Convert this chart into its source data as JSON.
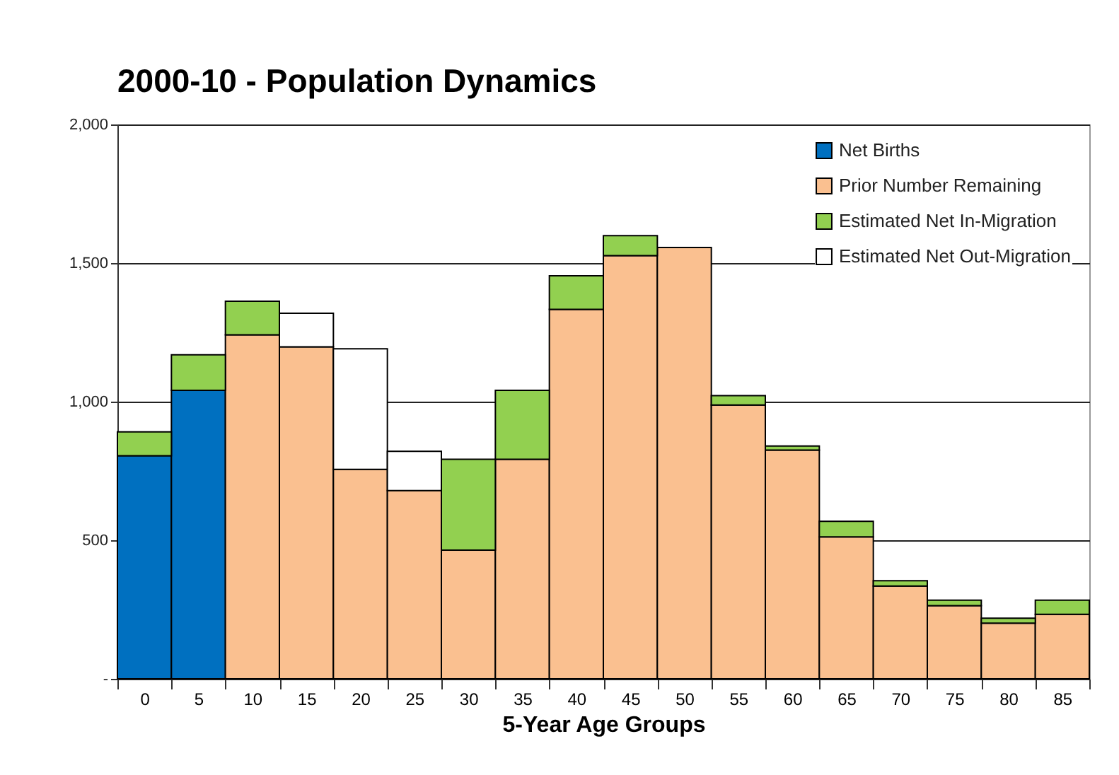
{
  "chart_data": {
    "type": "bar",
    "title": "2000-10 - Population  Dynamics",
    "xlabel": "5-Year Age Groups",
    "stacked": true,
    "grid": "y",
    "legend": "top right",
    "categories": [
      "0",
      "5",
      "10",
      "15",
      "20",
      "25",
      "30",
      "35",
      "40",
      "45",
      "50",
      "55",
      "60",
      "65",
      "70",
      "75",
      "80",
      "85"
    ],
    "ylim": [
      0,
      2000
    ],
    "yticks": [
      {
        "value": 0,
        "label": "-"
      },
      {
        "value": 500,
        "label": "500"
      },
      {
        "value": 1000,
        "label": "1,000"
      },
      {
        "value": 1500,
        "label": "1,500"
      },
      {
        "value": 2000,
        "label": "2,000"
      }
    ],
    "series": [
      {
        "name": "Net Births",
        "color": "#0070c0",
        "values": [
          805,
          1041,
          null,
          null,
          null,
          null,
          null,
          null,
          null,
          null,
          null,
          null,
          null,
          null,
          null,
          null,
          null,
          null
        ]
      },
      {
        "name": "Prior Number Remaining",
        "color": "#fac090",
        "values": [
          null,
          null,
          1241,
          1198,
          756,
          679,
          464,
          792,
          1333,
          1527,
          1556,
          988,
          825,
          512,
          335,
          264,
          201,
          233
        ]
      },
      {
        "name": "Estimated Net In-Migration",
        "color": "#92d050",
        "values": [
          86,
          128,
          121,
          null,
          null,
          null,
          328,
          249,
          121,
          72,
          null,
          34,
          15,
          56,
          19,
          20,
          18,
          51
        ]
      },
      {
        "name": "Estimated Net Out-Migration",
        "color": "#ffffff",
        "values": [
          null,
          null,
          null,
          121,
          435,
          142,
          null,
          null,
          null,
          null,
          null,
          null,
          null,
          null,
          null,
          null,
          null,
          null
        ]
      }
    ]
  }
}
